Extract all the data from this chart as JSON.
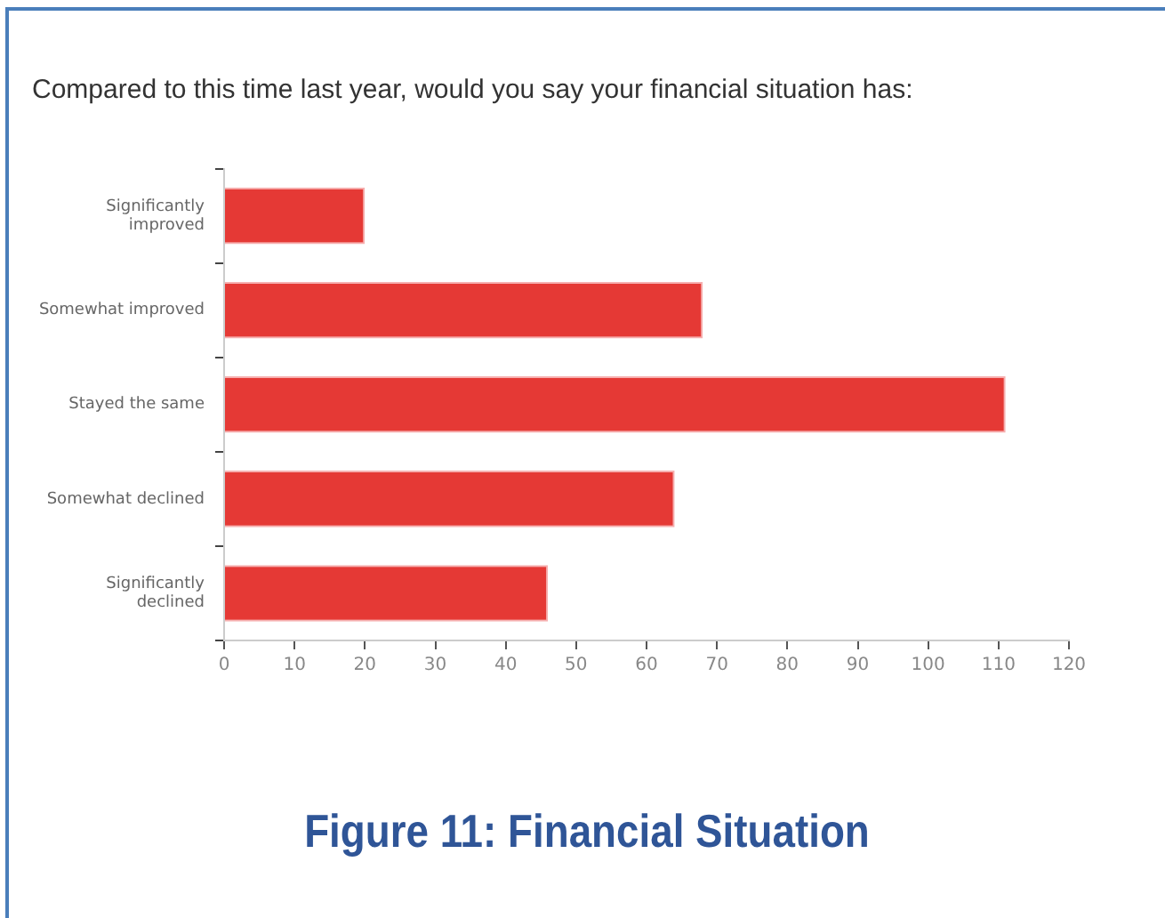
{
  "chart_data": {
    "type": "bar",
    "orientation": "horizontal",
    "title": "Compared to this time last year, would you say your financial situation has:",
    "categories": [
      "Significantly improved",
      "Somewhat improved",
      "Stayed the same",
      "Somewhat declined",
      "Significantly declined"
    ],
    "values": [
      20,
      68,
      111,
      64,
      46
    ],
    "color": "#e53935",
    "xlim": [
      0,
      120
    ],
    "xticks": [
      0,
      10,
      20,
      30,
      40,
      50,
      60,
      70,
      80,
      90,
      100,
      110,
      120
    ],
    "grid": false,
    "legend": false,
    "annotations": [
      "Figure 11: Financial Situation"
    ]
  }
}
